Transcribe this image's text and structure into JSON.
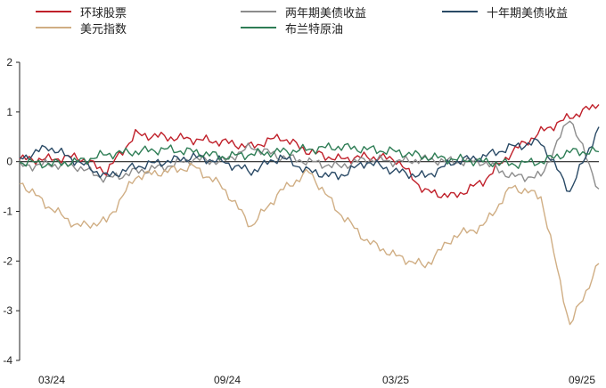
{
  "legend": [
    {
      "name": "环球股票",
      "color": "#c0202a"
    },
    {
      "name": "两年期美债收益",
      "color": "#8c8c8c"
    },
    {
      "name": "十年期美债收益",
      "color": "#2a4a66"
    },
    {
      "name": "美元指数",
      "color": "#d0ae84"
    },
    {
      "name": "布兰特原油",
      "color": "#2e7d55"
    }
  ],
  "chart_data": {
    "type": "line",
    "title": "",
    "xlabel": "",
    "ylabel": "",
    "ylim": [
      -4,
      2
    ],
    "yticks": [
      "2",
      "1",
      "0",
      "-1",
      "-2",
      "-3",
      "-4"
    ],
    "xticks": [
      "03/24",
      "09/24",
      "03/25",
      "09/25"
    ],
    "xlim": [
      "2024-01",
      "2025-09"
    ],
    "grid": false,
    "legend_position": "top",
    "series": [
      {
        "name": "环球股票",
        "color": "#c0202a",
        "x": [
          "2024-01",
          "2024-02",
          "2024-03",
          "2024-04",
          "2024-05",
          "2024-06",
          "2024-07",
          "2024-08",
          "2024-09",
          "2024-10",
          "2024-11",
          "2024-12",
          "2025-01",
          "2025-02",
          "2025-03",
          "2025-04",
          "2025-05",
          "2025-06",
          "2025-07",
          "2025-08",
          "2025-09"
        ],
        "values": [
          0.05,
          0.05,
          0.1,
          -0.2,
          0.55,
          0.5,
          0.45,
          0.4,
          0.3,
          0.5,
          0.2,
          0.05,
          0.1,
          0.05,
          -0.6,
          -0.7,
          -0.4,
          0.2,
          0.6,
          0.9,
          1.15
        ]
      },
      {
        "name": "两年期美债收益",
        "color": "#8c8c8c",
        "x": [
          "2024-01",
          "2024-02",
          "2024-03",
          "2024-04",
          "2024-05",
          "2024-06",
          "2024-07",
          "2024-08",
          "2024-09",
          "2024-10",
          "2024-11",
          "2024-12",
          "2025-01",
          "2025-02",
          "2025-03",
          "2025-04",
          "2025-05",
          "2025-06",
          "2025-07",
          "2025-08",
          "2025-09"
        ],
        "values": [
          -0.1,
          -0.05,
          -0.1,
          -0.35,
          -0.2,
          -0.1,
          0.05,
          0.0,
          0.3,
          0.1,
          0.0,
          -0.1,
          0.05,
          0.0,
          0.05,
          0.0,
          0.0,
          -0.3,
          -0.3,
          0.9,
          -0.55
        ]
      },
      {
        "name": "十年期美债收益",
        "color": "#2a4a66",
        "x": [
          "2024-01",
          "2024-02",
          "2024-03",
          "2024-04",
          "2024-05",
          "2024-06",
          "2024-07",
          "2024-08",
          "2024-09",
          "2024-10",
          "2024-11",
          "2024-12",
          "2025-01",
          "2025-02",
          "2025-03",
          "2025-04",
          "2025-05",
          "2025-06",
          "2025-07",
          "2025-08",
          "2025-09"
        ],
        "values": [
          0.05,
          0.3,
          0.0,
          -0.3,
          -0.1,
          0.0,
          0.1,
          0.0,
          -0.2,
          0.1,
          -0.2,
          -0.3,
          0.0,
          -0.2,
          -0.3,
          0.0,
          0.1,
          0.3,
          0.4,
          -0.6,
          0.7
        ]
      },
      {
        "name": "美元指数",
        "color": "#d0ae84",
        "x": [
          "2024-01",
          "2024-02",
          "2024-03",
          "2024-04",
          "2024-05",
          "2024-06",
          "2024-07",
          "2024-08",
          "2024-09",
          "2024-10",
          "2024-11",
          "2024-12",
          "2025-01",
          "2025-02",
          "2025-03",
          "2025-04",
          "2025-05",
          "2025-06",
          "2025-07",
          "2025-08",
          "2025-09"
        ],
        "values": [
          -0.4,
          -0.9,
          -1.3,
          -1.2,
          -0.3,
          -0.2,
          -0.1,
          -0.5,
          -1.3,
          -0.6,
          -0.2,
          -1.0,
          -1.6,
          -1.9,
          -2.1,
          -1.5,
          -1.3,
          -0.5,
          -0.7,
          -3.3,
          -2.05
        ]
      },
      {
        "name": "布兰特原油",
        "color": "#2e7d55",
        "x": [
          "2024-01",
          "2024-02",
          "2024-03",
          "2024-04",
          "2024-05",
          "2024-06",
          "2024-07",
          "2024-08",
          "2024-09",
          "2024-10",
          "2024-11",
          "2024-12",
          "2025-01",
          "2025-02",
          "2025-03",
          "2025-04",
          "2025-05",
          "2025-06",
          "2025-07",
          "2025-08",
          "2025-09"
        ],
        "values": [
          0.0,
          -0.05,
          0.0,
          0.15,
          0.2,
          0.25,
          0.2,
          0.1,
          0.15,
          0.2,
          0.25,
          0.3,
          0.25,
          0.2,
          0.1,
          0.05,
          0.0,
          -0.05,
          0.0,
          0.2,
          0.2
        ]
      }
    ]
  }
}
